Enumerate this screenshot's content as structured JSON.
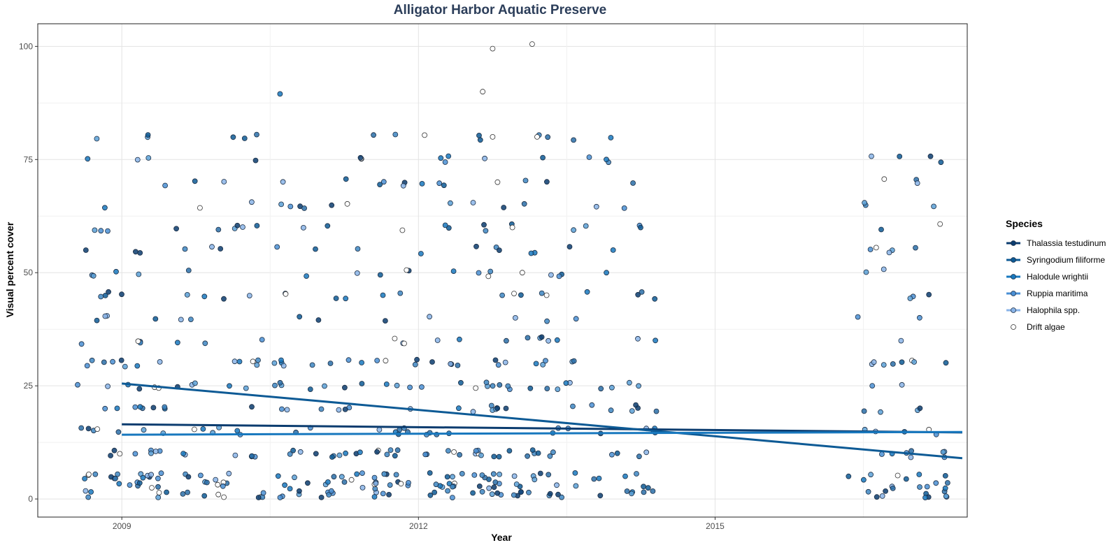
{
  "chart_data": {
    "type": "scatter",
    "title": "Alligator Harbor Aquatic Preserve",
    "xlabel": "Year",
    "ylabel": "Visual percent cover",
    "xlim": [
      2008.15,
      2017.55
    ],
    "ylim": [
      -4,
      105
    ],
    "x_ticks": [
      2009,
      2012,
      2015
    ],
    "y_ticks": [
      0,
      25,
      50,
      75,
      100
    ],
    "grid": true,
    "legend_placement": "right",
    "legend_title": "Species",
    "point_levels": [
      1,
      3,
      5,
      10,
      15,
      20,
      25,
      30,
      35,
      40,
      45,
      50,
      55,
      60,
      65,
      70,
      75,
      80
    ],
    "sampling_years": [
      {
        "year": 2009.0,
        "n": 95
      },
      {
        "year": 2010.0,
        "n": 70
      },
      {
        "year": 2011.0,
        "n": 80
      },
      {
        "year": 2012.0,
        "n": 100
      },
      {
        "year": 2013.0,
        "n": 110
      },
      {
        "year": 2013.95,
        "n": 60
      },
      {
        "year": 2016.9,
        "n": 75
      }
    ],
    "notable_points": [
      {
        "x": 2010.6,
        "y": 89.5,
        "series": "Halodule wrightii"
      },
      {
        "x": 2012.65,
        "y": 90,
        "series": "Drift algae"
      },
      {
        "x": 2012.75,
        "y": 99.5,
        "series": "Drift algae"
      },
      {
        "x": 2013.15,
        "y": 100.5,
        "series": "Drift algae"
      },
      {
        "x": 2012.75,
        "y": 80,
        "series": "Drift algae"
      },
      {
        "x": 2013.2,
        "y": 80,
        "series": "Drift algae"
      },
      {
        "x": 2012.8,
        "y": 70,
        "series": "Drift algae"
      },
      {
        "x": 2012.95,
        "y": 60,
        "series": "Drift algae"
      },
      {
        "x": 2013.05,
        "y": 50,
        "series": "Drift algae"
      },
      {
        "x": 2013.9,
        "y": 75,
        "series": "Halodule wrightii"
      },
      {
        "x": 2016.35,
        "y": 5,
        "series": "Syringodium filiforme"
      }
    ],
    "series": [
      {
        "name": "Thalassia testudinum",
        "color": "#0b3c6f",
        "trend": {
          "x": [
            2009.0,
            2017.5
          ],
          "y": [
            16.5,
            14.7
          ]
        }
      },
      {
        "name": "Syringodium filiforme",
        "color": "#0d5a95",
        "trend": {
          "x": [
            2009.0,
            2017.5
          ],
          "y": [
            25.5,
            9.0
          ]
        }
      },
      {
        "name": "Halodule wrightii",
        "color": "#1878be",
        "trend": {
          "x": [
            2009.0,
            2017.5
          ],
          "y": [
            14.2,
            14.8
          ]
        }
      },
      {
        "name": "Ruppia maritima",
        "color": "#4a8fd4",
        "trend": null
      },
      {
        "name": "Halophila spp.",
        "color": "#8ab4e8",
        "trend": null
      },
      {
        "name": "Drift algae",
        "color": "#ffffff",
        "trend": null
      }
    ]
  }
}
